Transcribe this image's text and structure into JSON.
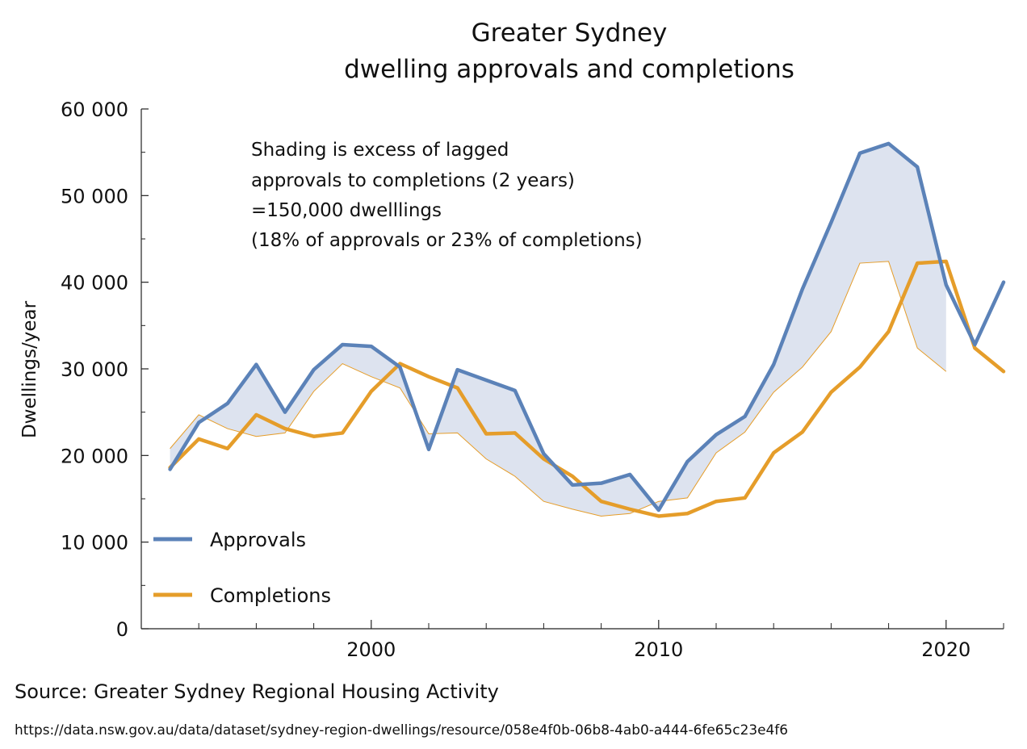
{
  "chart_data": {
    "type": "line",
    "title": "Greater Sydney",
    "subtitle": "dwelling approvals and completions",
    "ylabel": "Dwellings/year",
    "xlabel": "",
    "xlim": [
      1992,
      2022
    ],
    "ylim": [
      0,
      60000
    ],
    "x_ticks": [
      2000,
      2010,
      2020
    ],
    "x_tick_labels": [
      "2000",
      "2010",
      "2020"
    ],
    "y_ticks": [
      0,
      10000,
      20000,
      30000,
      40000,
      50000,
      60000
    ],
    "y_tick_labels": [
      "0",
      "10 000",
      "20 000",
      "30 000",
      "40 000",
      "50 000",
      "60 000"
    ],
    "grid": false,
    "legend_position": "bottom-left",
    "annotation": [
      "Shading is excess of lagged",
      "approvals to completions (2 years)",
      "=150,000 dwelllings",
      "(18% of approvals or 23% of completions)"
    ],
    "series": [
      {
        "name": "Approvals",
        "color": "#5b82b8",
        "x": [
          1993,
          1994,
          1995,
          1996,
          1997,
          1998,
          1999,
          2000,
          2001,
          2002,
          2003,
          2004,
          2005,
          2006,
          2007,
          2008,
          2009,
          2010,
          2011,
          2012,
          2013,
          2014,
          2015,
          2016,
          2017,
          2018,
          2019,
          2020,
          2021,
          2022
        ],
        "values": [
          18400,
          23800,
          26000,
          30500,
          25000,
          29900,
          32800,
          32600,
          30200,
          20700,
          29900,
          28700,
          27500,
          20200,
          16600,
          16800,
          17800,
          13700,
          19300,
          22400,
          24500,
          30500,
          39200,
          46900,
          54900,
          56000,
          53300,
          39700,
          32800,
          40000
        ]
      },
      {
        "name": "Completions",
        "color": "#e59d2a",
        "x": [
          1993,
          1994,
          1995,
          1996,
          1997,
          1998,
          1999,
          2000,
          2001,
          2002,
          2003,
          2004,
          2005,
          2006,
          2007,
          2008,
          2009,
          2010,
          2011,
          2012,
          2013,
          2014,
          2015,
          2016,
          2017,
          2018,
          2019,
          2020,
          2021,
          2022
        ],
        "values": [
          18600,
          21900,
          20800,
          24700,
          23100,
          22200,
          22600,
          27400,
          30600,
          29100,
          27800,
          22500,
          22600,
          19600,
          17600,
          14700,
          13800,
          13000,
          13300,
          14700,
          15100,
          20300,
          22700,
          27300,
          30200,
          34300,
          42200,
          42400,
          32400,
          29700
        ]
      },
      {
        "name": "",
        "color": "#e59d2a",
        "x": [
          1993,
          1994,
          1995,
          1996,
          1997,
          1998,
          1999,
          2000,
          2001,
          2002,
          2003,
          2004,
          2005,
          2006,
          2007,
          2008,
          2009,
          2010,
          2011,
          2012,
          2013,
          2014,
          2015,
          2016,
          2017,
          2018,
          2019,
          2020
        ],
        "values": [
          20800,
          24700,
          23100,
          22200,
          22600,
          27400,
          30600,
          29100,
          27800,
          22500,
          22600,
          19600,
          17600,
          14700,
          13800,
          13000,
          13300,
          14700,
          15100,
          20300,
          22700,
          27300,
          30200,
          34300,
          42200,
          42400,
          32400,
          29700
        ]
      }
    ],
    "shading": {
      "color": "#dde3ef",
      "between": [
        "Approvals (to 2020)",
        "Completions lagged 2 years"
      ]
    }
  },
  "source": "Source: Greater Sydney Regional Housing Activity",
  "url": "https://data.nsw.gov.au/data/dataset/sydney-region-dwellings/resource/058e4f0b-06b8-4ab0-a444-6fe65c23e4f6"
}
